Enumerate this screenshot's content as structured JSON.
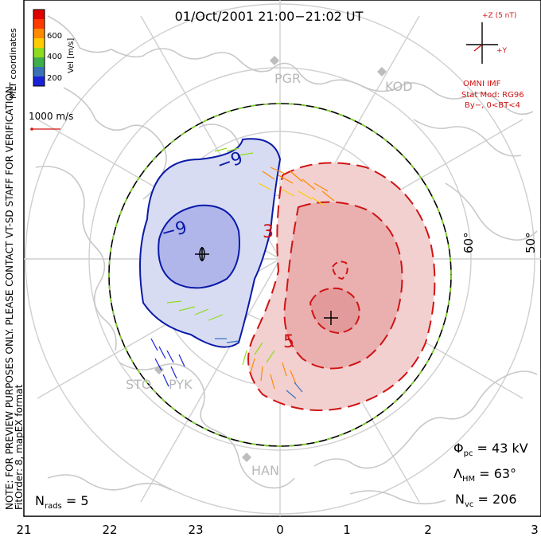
{
  "title": "01/Oct/2001 21:00−21:02 UT",
  "colorbar": {
    "unit": "Vel [m/s]",
    "ticks": [
      "600",
      "400",
      "200"
    ],
    "colors": [
      "#1a22d8",
      "#3a72b8",
      "#3fae4c",
      "#8fdc1e",
      "#ffcc00",
      "#ff8a00",
      "#ff3a00",
      "#e00000"
    ]
  },
  "vector_scale": "1000 m/s",
  "coord_label": "MLT coordinates",
  "vertical_notes": {
    "preview": "NOTE: FOR PREVIEW PURPOSES ONLY. PLEASE CONTACT VT-SD STAFF FOR VERIFICATION.",
    "fit": "FitOrder: 8, mapEX format"
  },
  "imf": {
    "z_label": "+Z (5 nT)",
    "y_label": "+Y",
    "source": "OMNI IMF",
    "model": "Stat Mod: RG96",
    "cond": "By−, 0<BT<4"
  },
  "latitudes": [
    "60°",
    "50°"
  ],
  "stations": [
    "PGR",
    "KOD",
    "STO",
    "PYK",
    "HAN"
  ],
  "contour_labels": {
    "neg_outer": "−9",
    "neg_inner": "−9",
    "pos_a": "3",
    "pos_b": "5"
  },
  "stats": {
    "phi_sym": "Φ",
    "phi_sub": "pc",
    "phi_val": " = 43 kV",
    "lam_sym": "Λ",
    "lam_sub": "HM",
    "lam_val": " = 63°",
    "nvc_sym": "N",
    "nvc_sub": "vc",
    "nvc_val": " = 206",
    "nrads_sym": "N",
    "nrads_sub": "rads",
    "nrads_val": " = 5"
  },
  "mlt_axis": [
    "21",
    "22",
    "23",
    "0",
    "1",
    "2",
    "3"
  ]
}
